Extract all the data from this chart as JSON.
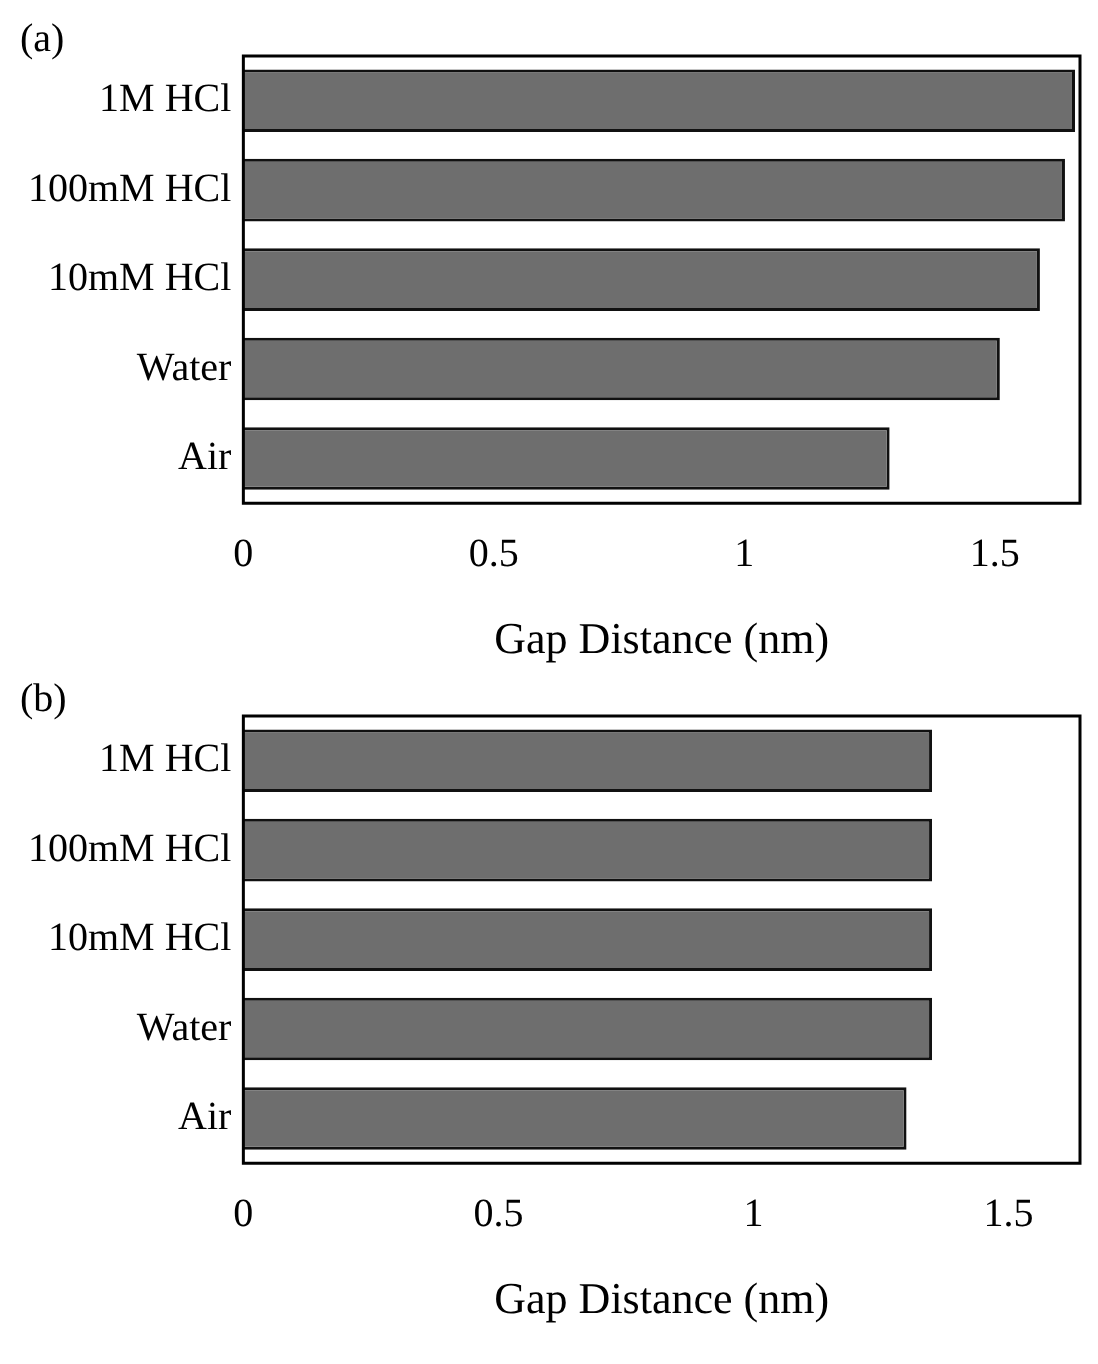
{
  "chart_data": [
    {
      "type": "bar",
      "orientation": "horizontal",
      "annotations": [
        "(a)"
      ],
      "categories": [
        "1M HCl",
        "100mM HCl",
        "10mM HCl",
        "Water",
        "Air"
      ],
      "values": [
        1.66,
        1.64,
        1.59,
        1.51,
        1.29
      ],
      "color": "#6e6e6e",
      "xlabel": "Gap Distance (nm)",
      "xlim": [
        0,
        1.67
      ],
      "xticks": [
        0,
        0.5,
        1,
        1.5
      ],
      "grid": false,
      "legend": false
    },
    {
      "type": "bar",
      "orientation": "horizontal",
      "annotations": [
        "(b)"
      ],
      "categories": [
        "1M HCl",
        "100mM HCl",
        "10mM HCl",
        "Water",
        "Air"
      ],
      "values": [
        1.35,
        1.35,
        1.35,
        1.35,
        1.3
      ],
      "color": "#6e6e6e",
      "xlabel": "Gap Distance (nm)",
      "xlim": [
        0,
        1.64
      ],
      "xticks": [
        0,
        0.5,
        1,
        1.5
      ],
      "grid": false,
      "legend": false
    }
  ]
}
